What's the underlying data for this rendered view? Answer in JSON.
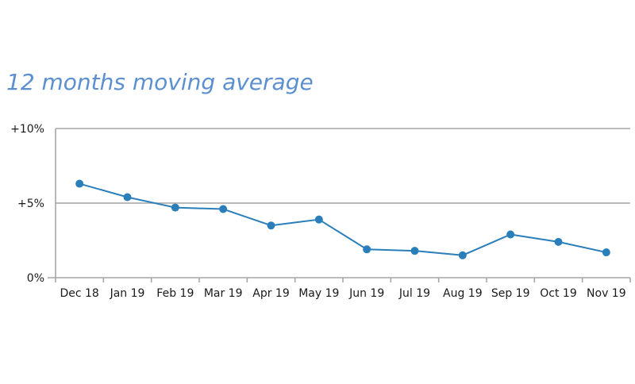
{
  "colors": {
    "title": "#5b8fd0",
    "series": "#2a7fba",
    "gridline": "#a6a6a6",
    "axis": "#a6a6a6"
  },
  "chart_data": {
    "type": "line",
    "title": "12 months moving average",
    "xlabel": "",
    "ylabel": "",
    "ylim": [
      0,
      10
    ],
    "y_ticks": [
      {
        "value": 0,
        "label": "0%"
      },
      {
        "value": 5,
        "label": "+5%"
      },
      {
        "value": 10,
        "label": "+10%"
      }
    ],
    "grid": true,
    "legend": "none",
    "categories": [
      "Dec 18",
      "Jan 19",
      "Feb 19",
      "Mar 19",
      "Apr 19",
      "May 19",
      "Jun 19",
      "Jul 19",
      "Aug 19",
      "Sep 19",
      "Oct 19",
      "Nov 19"
    ],
    "series": [
      {
        "values": [
          6.3,
          5.4,
          4.7,
          4.6,
          3.5,
          3.9,
          1.9,
          1.8,
          1.5,
          2.9,
          2.4,
          1.7
        ]
      }
    ]
  }
}
